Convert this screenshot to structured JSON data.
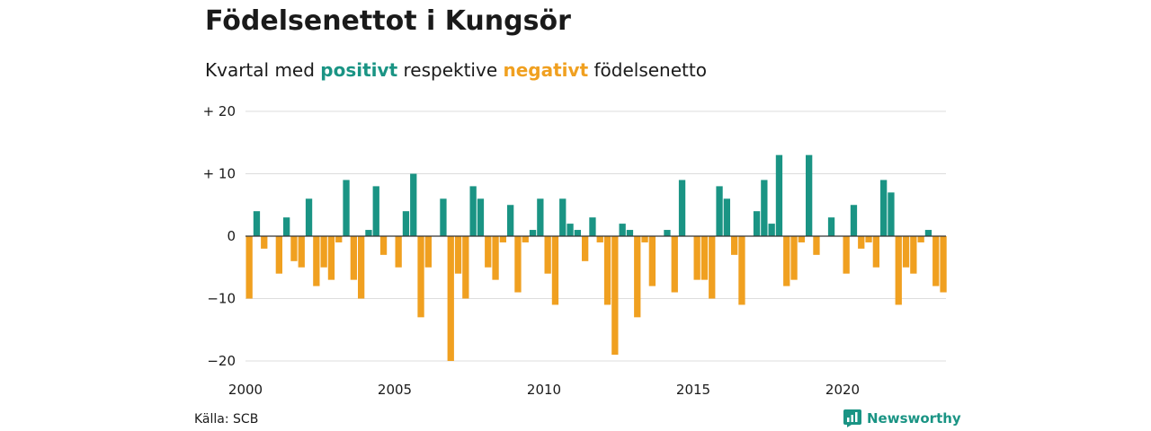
{
  "title": "Födelsenettot i Kungsör",
  "subtitle": {
    "prefix": "Kvartal med",
    "positive": "positivt",
    "middle": "respektive",
    "negative": "negativt",
    "suffix": "födelsenetto"
  },
  "source": "Källa: SCB",
  "brand": "Newsworthy",
  "colors": {
    "positive": "#1a9484",
    "negative": "#f0a020",
    "grid": "#dddddd"
  },
  "chart_data": {
    "type": "bar",
    "title": "Födelsenettot i Kungsör",
    "subtitle": "Kvartal med positivt respektive negativt födelsenetto",
    "xlabel": "",
    "ylabel": "",
    "ylim": [
      -20,
      20
    ],
    "y_ticks": [
      {
        "value": 20,
        "label": "+ 20"
      },
      {
        "value": 10,
        "label": "+ 10"
      },
      {
        "value": 0,
        "label": "0"
      },
      {
        "value": -10,
        "label": "−10"
      },
      {
        "value": -20,
        "label": "−20"
      }
    ],
    "x_ticks": [
      "2000",
      "2005",
      "2010",
      "2015",
      "2020"
    ],
    "start_year": 2000,
    "quarters_per_year": 4,
    "values": [
      -10,
      4,
      -2,
      0,
      -6,
      3,
      -4,
      -5,
      6,
      -8,
      -5,
      -7,
      -1,
      9,
      -7,
      -10,
      1,
      8,
      -3,
      0,
      -5,
      4,
      10,
      -13,
      -5,
      0,
      6,
      -20,
      -6,
      -10,
      8,
      6,
      -5,
      -7,
      -1,
      5,
      -9,
      -1,
      1,
      6,
      -6,
      -11,
      6,
      2,
      1,
      -4,
      3,
      -1,
      -11,
      -19,
      2,
      1,
      -13,
      -1,
      -8,
      0,
      1,
      -9,
      9,
      0,
      -7,
      -7,
      -10,
      8,
      6,
      -3,
      -11,
      0,
      4,
      9,
      2,
      13,
      -8,
      -7,
      -1,
      13,
      -3,
      0,
      3,
      0,
      -6,
      5,
      -2,
      -1,
      -5,
      9,
      7,
      -11,
      -5,
      -6,
      -1,
      1,
      -8,
      -9
    ]
  }
}
